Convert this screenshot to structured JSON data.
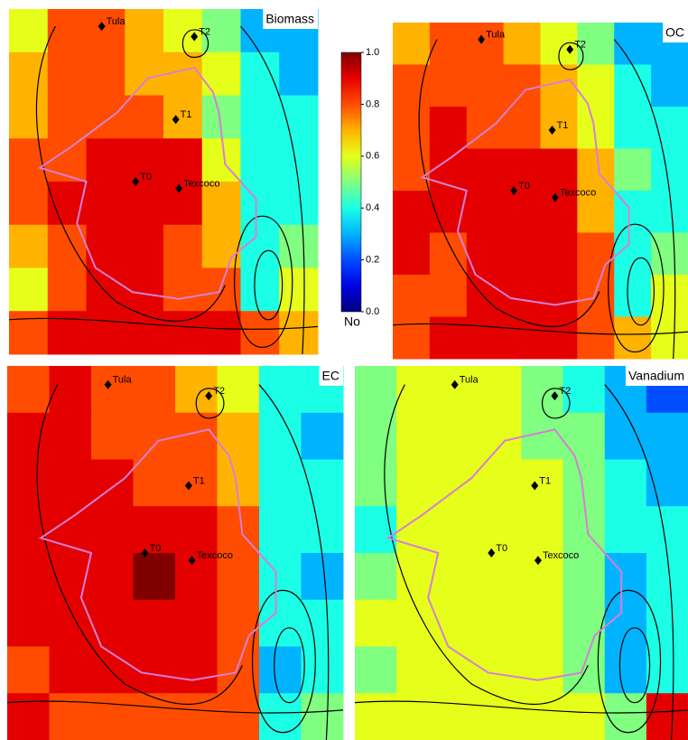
{
  "colormap": "jet",
  "sites": [
    "Tula",
    "T2",
    "T1",
    "T0",
    "Texcoco"
  ],
  "colorbar": {
    "label": "No",
    "lim": [
      0,
      1
    ],
    "ticks": [
      {
        "value": 0,
        "label": "0.0"
      },
      {
        "value": 0.2,
        "label": "0.2"
      },
      {
        "value": 0.4,
        "label": "0.4"
      },
      {
        "value": 0.6,
        "label": "0.6"
      },
      {
        "value": 0.8,
        "label": "0.8"
      },
      {
        "value": 1,
        "label": "1.0"
      }
    ]
  },
  "chart_data": [
    {
      "type": "heatmap",
      "title": "Biomass",
      "z": [
        [
          0.6,
          0.8,
          0.8,
          0.7,
          0.6,
          0.5,
          0.3,
          0.3
        ],
        [
          0.7,
          0.8,
          0.8,
          0.7,
          0.7,
          0.6,
          0.4,
          0.3
        ],
        [
          0.7,
          0.8,
          0.8,
          0.8,
          0.7,
          0.5,
          0.4,
          0.4
        ],
        [
          0.8,
          0.8,
          0.9,
          0.9,
          0.9,
          0.6,
          0.4,
          0.4
        ],
        [
          0.8,
          0.9,
          0.9,
          0.9,
          0.9,
          0.7,
          0.4,
          0.4
        ],
        [
          0.7,
          0.8,
          0.9,
          0.9,
          0.8,
          0.7,
          0.4,
          0.5
        ],
        [
          0.6,
          0.8,
          0.9,
          0.9,
          0.8,
          0.8,
          0.4,
          0.6
        ],
        [
          0.8,
          0.9,
          0.9,
          0.9,
          0.9,
          0.9,
          0.8,
          0.7
        ]
      ]
    },
    {
      "type": "heatmap",
      "title": "OC",
      "z": [
        [
          0.7,
          0.8,
          0.8,
          0.7,
          0.6,
          0.5,
          0.3,
          0.3
        ],
        [
          0.8,
          0.8,
          0.8,
          0.8,
          0.7,
          0.6,
          0.4,
          0.3
        ],
        [
          0.8,
          0.9,
          0.8,
          0.8,
          0.7,
          0.6,
          0.4,
          0.4
        ],
        [
          0.8,
          0.9,
          0.9,
          0.9,
          0.9,
          0.7,
          0.5,
          0.4
        ],
        [
          0.9,
          0.9,
          0.9,
          0.9,
          0.9,
          0.7,
          0.4,
          0.4
        ],
        [
          0.9,
          0.8,
          0.9,
          0.9,
          0.9,
          0.8,
          0.4,
          0.5
        ],
        [
          0.8,
          0.8,
          0.9,
          0.9,
          0.9,
          0.8,
          0.4,
          0.6
        ],
        [
          0.8,
          0.9,
          0.9,
          0.9,
          0.9,
          0.8,
          0.7,
          0.6
        ]
      ]
    },
    {
      "type": "heatmap",
      "title": "EC",
      "z": [
        [
          0.8,
          0.9,
          0.8,
          0.8,
          0.7,
          0.6,
          0.4,
          0.4
        ],
        [
          0.9,
          0.9,
          0.8,
          0.8,
          0.8,
          0.7,
          0.4,
          0.3
        ],
        [
          0.9,
          0.9,
          0.9,
          0.8,
          0.8,
          0.7,
          0.4,
          0.4
        ],
        [
          0.9,
          0.9,
          0.9,
          0.9,
          0.9,
          0.8,
          0.4,
          0.4
        ],
        [
          0.9,
          0.9,
          0.9,
          1.0,
          0.9,
          0.8,
          0.4,
          0.3
        ],
        [
          0.9,
          0.9,
          0.9,
          0.9,
          0.9,
          0.8,
          0.4,
          0.4
        ],
        [
          0.8,
          0.9,
          0.9,
          0.9,
          0.9,
          0.8,
          0.3,
          0.4
        ],
        [
          0.9,
          0.8,
          0.8,
          0.8,
          0.8,
          0.8,
          0.4,
          0.5
        ]
      ]
    },
    {
      "type": "heatmap",
      "title": "Vanadium",
      "z": [
        [
          0.5,
          0.6,
          0.6,
          0.6,
          0.5,
          0.4,
          0.3,
          0.2
        ],
        [
          0.5,
          0.6,
          0.6,
          0.6,
          0.5,
          0.5,
          0.3,
          0.3
        ],
        [
          0.5,
          0.6,
          0.6,
          0.6,
          0.6,
          0.5,
          0.4,
          0.3
        ],
        [
          0.4,
          0.6,
          0.6,
          0.6,
          0.6,
          0.5,
          0.4,
          0.4
        ],
        [
          0.5,
          0.6,
          0.6,
          0.6,
          0.6,
          0.5,
          0.3,
          0.4
        ],
        [
          0.6,
          0.6,
          0.6,
          0.6,
          0.6,
          0.5,
          0.3,
          0.4
        ],
        [
          0.5,
          0.6,
          0.6,
          0.6,
          0.6,
          0.5,
          0.3,
          0.4
        ],
        [
          0.6,
          0.6,
          0.6,
          0.6,
          0.6,
          0.6,
          0.5,
          0.9
        ]
      ]
    }
  ]
}
